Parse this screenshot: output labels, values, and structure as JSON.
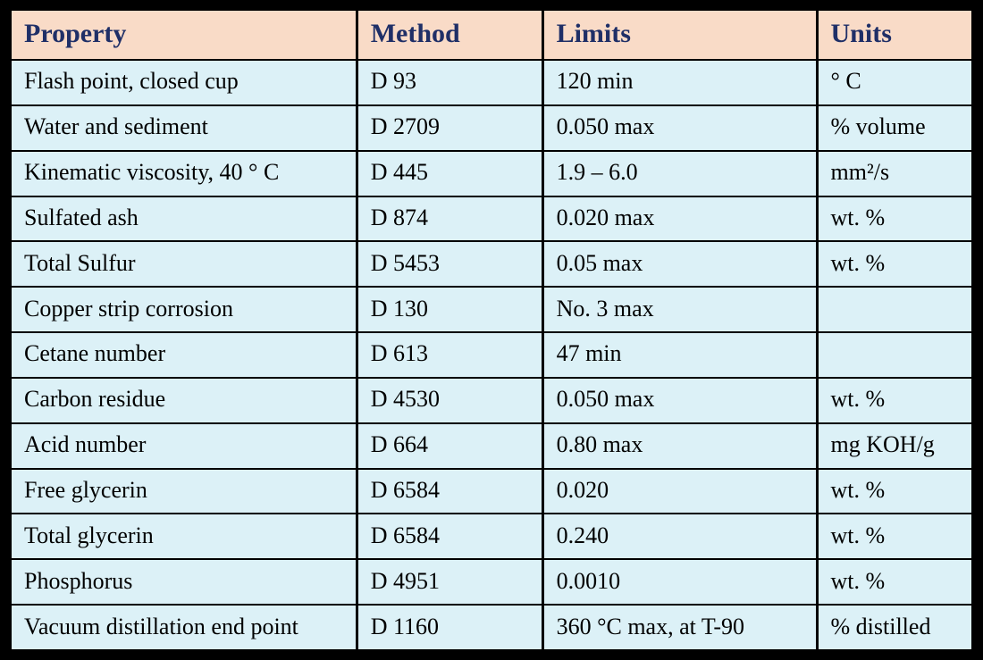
{
  "table": {
    "columns": [
      {
        "label": "Property"
      },
      {
        "label": "Method"
      },
      {
        "label": "Limits"
      },
      {
        "label": "Units"
      }
    ],
    "rows": [
      {
        "property": "Flash point, closed cup",
        "method": "D 93",
        "limits": "120 min",
        "units": "° C"
      },
      {
        "property": "Water and sediment",
        "method": "D 2709",
        "limits": "0.050 max",
        "units": "% volume"
      },
      {
        "property": "Kinematic viscosity, 40 ° C",
        "method": "D 445",
        "limits": "1.9 – 6.0",
        "units": "mm²/s"
      },
      {
        "property": "Sulfated ash",
        "method": "D 874",
        "limits": "0.020 max",
        "units": "wt. %"
      },
      {
        "property": "Total Sulfur",
        "method": "D 5453",
        "limits": "0.05 max",
        "units": "wt. %"
      },
      {
        "property": "Copper strip corrosion",
        "method": "D 130",
        "limits": "No. 3 max",
        "units": ""
      },
      {
        "property": "Cetane number",
        "method": "D 613",
        "limits": "47 min",
        "units": ""
      },
      {
        "property": "Carbon residue",
        "method": "D 4530",
        "limits": "0.050 max",
        "units": "wt. %"
      },
      {
        "property": "Acid number",
        "method": "D 664",
        "limits": "0.80 max",
        "units": "mg KOH/g"
      },
      {
        "property": "Free glycerin",
        "method": "D 6584",
        "limits": "0.020",
        "units": "wt. %"
      },
      {
        "property": "Total glycerin",
        "method": "D 6584",
        "limits": "0.240",
        "units": "wt. %"
      },
      {
        "property": "Phosphorus",
        "method": "D 4951",
        "limits": "0.0010",
        "units": "wt. %"
      },
      {
        "property": "Vacuum distillation end point",
        "method": "D 1160",
        "limits": "360 °C max, at T-90",
        "units": "% distilled"
      }
    ]
  },
  "colors": {
    "header_bg": "#f9dbc7",
    "header_text": "#1f2f67",
    "body_bg": "#dcf1f7",
    "body_text": "#000000",
    "grid": "#000000"
  }
}
